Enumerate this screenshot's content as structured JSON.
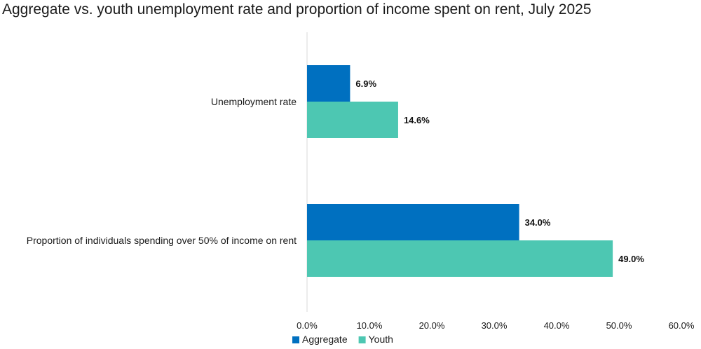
{
  "chart_data": {
    "type": "bar",
    "orientation": "horizontal",
    "title": "Aggregate vs. youth unemployment rate and proportion of income spent on rent, July 2025",
    "categories": [
      "Unemployment rate",
      "Proportion of individuals spending over 50% of income on rent"
    ],
    "series": [
      {
        "name": "Aggregate",
        "color": "#0070C0",
        "values": [
          6.9,
          34.0
        ],
        "labels": [
          "6.9%",
          "34.0%"
        ]
      },
      {
        "name": "Youth",
        "color": "#4DC7B2",
        "values": [
          14.6,
          49.0
        ],
        "labels": [
          "14.6%",
          "49.0%"
        ]
      }
    ],
    "x_ticks": [
      0,
      10,
      20,
      30,
      40,
      50,
      60
    ],
    "x_tick_labels": [
      "0.0%",
      "10.0%",
      "20.0%",
      "30.0%",
      "40.0%",
      "50.0%",
      "60.0%"
    ],
    "xlim": [
      0,
      60
    ],
    "xlabel": "",
    "ylabel": "",
    "grid": false,
    "legend_position": "bottom"
  }
}
